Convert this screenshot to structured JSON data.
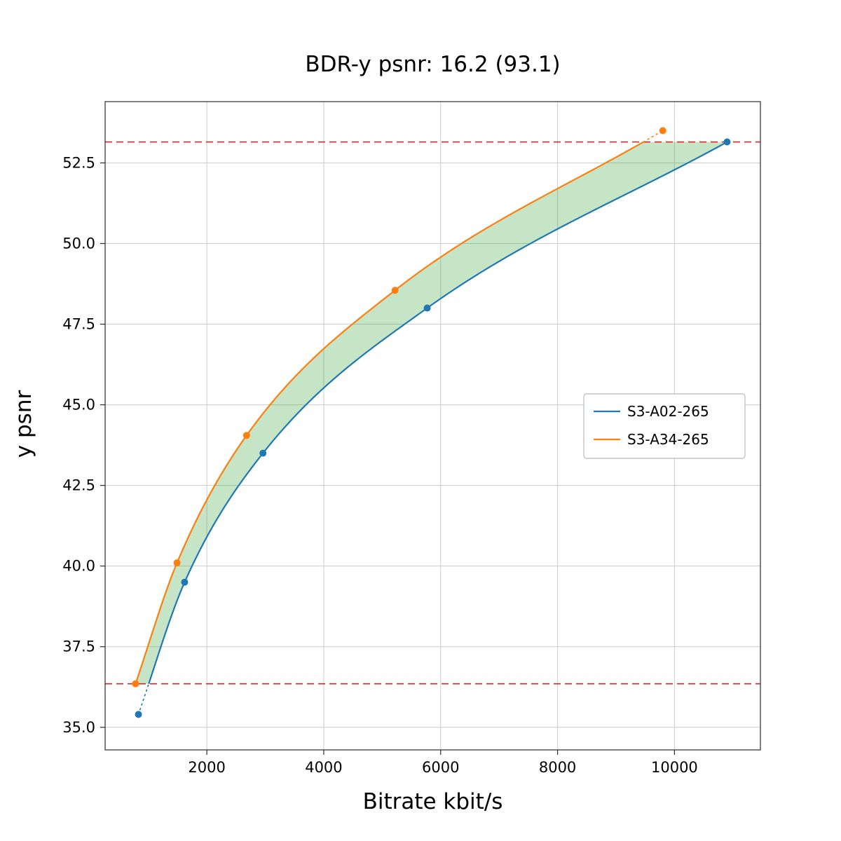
{
  "chart_data": {
    "type": "line",
    "title": "BDR-y psnr: 16.2 (93.1)",
    "xlabel": "Bitrate kbit/s",
    "ylabel": "y psnr",
    "xlim": [
      260,
      11470
    ],
    "ylim": [
      34.3,
      54.4
    ],
    "xticks": [
      2000,
      4000,
      6000,
      8000,
      10000
    ],
    "yticks": [
      35.0,
      37.5,
      40.0,
      42.5,
      45.0,
      47.5,
      50.0,
      52.5
    ],
    "grid": true,
    "legend_position": "center right",
    "clip_band": [
      36.35,
      53.15
    ],
    "hlines": [
      {
        "y": 53.15,
        "color": "#d62728",
        "style": "dashed"
      },
      {
        "y": 36.35,
        "color": "#d62728",
        "style": "dashed"
      }
    ],
    "fill_between": {
      "color": "#2ca02c",
      "opacity": 0.27
    },
    "series": [
      {
        "name": "S3-A02-265",
        "color": "#1f77b4",
        "x": [
          830,
          1620,
          2960,
          5770,
          10900
        ],
        "y": [
          35.4,
          39.5,
          43.5,
          48.0,
          53.15
        ]
      },
      {
        "name": "S3-A34-265",
        "color": "#ff7f0e",
        "x": [
          780,
          1490,
          2680,
          5220,
          9800
        ],
        "y": [
          36.35,
          40.1,
          44.05,
          48.55,
          53.5
        ]
      }
    ],
    "grid_color": "#cccccc",
    "spine_color": "#2b2b2b",
    "tick_label_color": "#000000"
  }
}
